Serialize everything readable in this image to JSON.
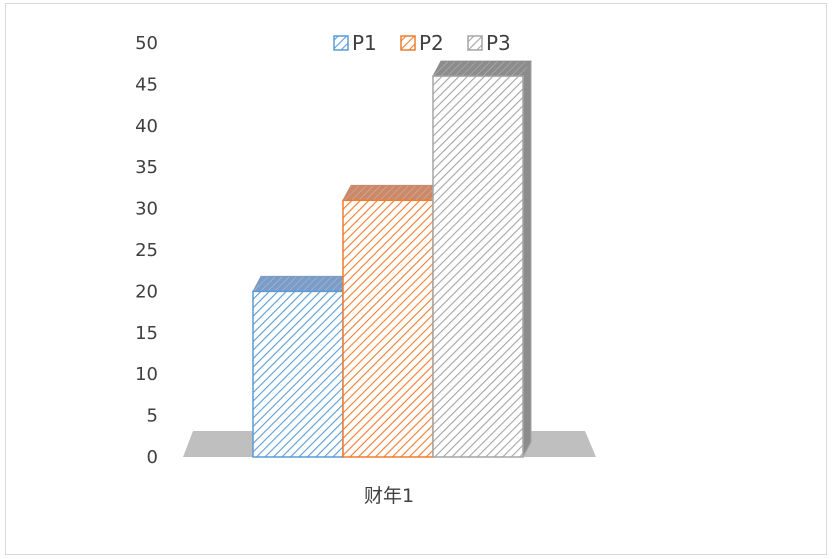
{
  "chart_data": {
    "type": "bar",
    "categories": [
      "财年1"
    ],
    "series": [
      {
        "name": "P1",
        "values": [
          20
        ],
        "color": "#5b9bd5",
        "top_color": "#7a9cc6"
      },
      {
        "name": "P2",
        "values": [
          31
        ],
        "color": "#ed7d31",
        "top_color": "#c9896a"
      },
      {
        "name": "P3",
        "values": [
          46
        ],
        "color": "#a5a5a5",
        "top_color": "#8c8c8c"
      }
    ],
    "ylim": [
      0,
      50
    ],
    "yticks": [
      "0",
      "5",
      "10",
      "15",
      "20",
      "25",
      "30",
      "35",
      "40",
      "45",
      "50"
    ],
    "legend_position": "top",
    "grid": false,
    "style": "3d-hatched",
    "floor_color": "#bfbfbf"
  }
}
